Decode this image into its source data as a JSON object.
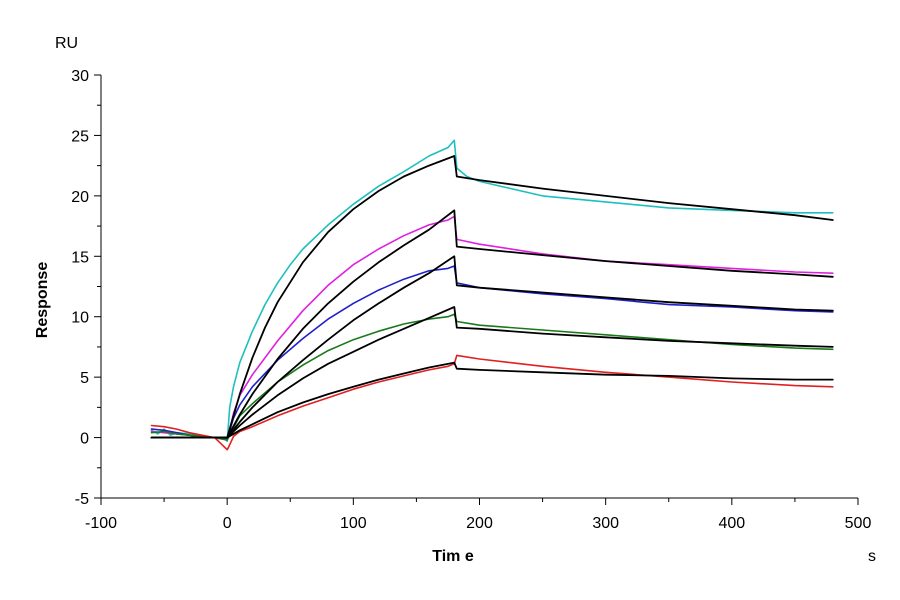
{
  "chart_data": {
    "type": "line",
    "xlabel": "Tim e",
    "ylabel": "Response",
    "x_unit": "s",
    "y_unit": "RU",
    "xlim": [
      -100,
      500
    ],
    "ylim": [
      -5,
      30
    ],
    "x_ticks": [
      -100,
      0,
      100,
      200,
      300,
      400,
      500
    ],
    "y_ticks": [
      -5,
      0,
      5,
      10,
      15,
      20,
      25,
      30
    ],
    "grid": false,
    "legend": "none",
    "series": [
      {
        "color": "#1fbfbf",
        "role": "measured",
        "x": [
          -60,
          -55,
          -50,
          -45,
          -40,
          -30,
          -20,
          -10,
          -2,
          0,
          2,
          5,
          10,
          20,
          30,
          40,
          50,
          60,
          80,
          100,
          120,
          140,
          160,
          175,
          180,
          182,
          190,
          200,
          250,
          300,
          350,
          400,
          450,
          480
        ],
        "y": [
          0.6,
          0.3,
          0.7,
          0.2,
          0.4,
          0.3,
          0.1,
          0.0,
          -0.1,
          -0.3,
          2.5,
          4.2,
          6.2,
          8.8,
          11.0,
          12.8,
          14.3,
          15.6,
          17.6,
          19.3,
          20.8,
          22.0,
          23.3,
          24.0,
          24.6,
          22.3,
          21.6,
          21.2,
          20.0,
          19.5,
          19.0,
          18.8,
          18.6,
          18.6
        ]
      },
      {
        "color": "#e020e0",
        "role": "measured",
        "x": [
          -60,
          -50,
          -40,
          -30,
          -20,
          -10,
          0,
          5,
          10,
          20,
          40,
          60,
          80,
          100,
          120,
          140,
          160,
          175,
          180,
          182,
          200,
          250,
          300,
          350,
          400,
          450,
          480
        ],
        "y": [
          0.5,
          0.4,
          0.3,
          0.2,
          0.1,
          0.0,
          -0.2,
          2.0,
          3.5,
          5.2,
          8.0,
          10.5,
          12.6,
          14.3,
          15.6,
          16.7,
          17.6,
          18.0,
          18.3,
          16.4,
          16.0,
          15.2,
          14.6,
          14.3,
          14.0,
          13.7,
          13.6
        ]
      },
      {
        "color": "#2020c8",
        "role": "measured",
        "x": [
          -60,
          -50,
          -40,
          -30,
          -20,
          -10,
          0,
          5,
          10,
          20,
          40,
          60,
          80,
          100,
          120,
          140,
          160,
          175,
          180,
          182,
          200,
          250,
          300,
          350,
          400,
          450,
          480
        ],
        "y": [
          0.7,
          0.6,
          0.4,
          0.2,
          0.1,
          0.0,
          -0.1,
          1.6,
          2.7,
          4.2,
          6.4,
          8.2,
          9.8,
          11.1,
          12.2,
          13.1,
          13.8,
          14.0,
          14.2,
          12.8,
          12.4,
          11.9,
          11.5,
          11.0,
          10.8,
          10.5,
          10.4
        ]
      },
      {
        "color": "#1a7a1a",
        "role": "measured",
        "x": [
          -60,
          -50,
          -40,
          -30,
          -20,
          -10,
          0,
          5,
          10,
          20,
          40,
          60,
          80,
          100,
          120,
          140,
          160,
          175,
          180,
          182,
          200,
          250,
          300,
          350,
          400,
          450,
          480
        ],
        "y": [
          0.4,
          0.5,
          0.3,
          0.2,
          0.1,
          0.0,
          -0.2,
          0.8,
          1.8,
          2.8,
          4.6,
          6.0,
          7.2,
          8.1,
          8.8,
          9.4,
          9.8,
          10.0,
          10.2,
          9.6,
          9.3,
          8.9,
          8.5,
          8.1,
          7.7,
          7.4,
          7.3
        ]
      },
      {
        "color": "#e02020",
        "role": "measured",
        "x": [
          -60,
          -50,
          -40,
          -30,
          -20,
          -10,
          0,
          2,
          5,
          10,
          20,
          40,
          60,
          80,
          100,
          120,
          140,
          160,
          175,
          180,
          182,
          200,
          250,
          300,
          350,
          400,
          450,
          480
        ],
        "y": [
          1.0,
          0.9,
          0.7,
          0.4,
          0.2,
          0.0,
          -1.0,
          -0.6,
          0.1,
          0.5,
          0.9,
          1.8,
          2.6,
          3.3,
          4.0,
          4.6,
          5.1,
          5.6,
          5.9,
          6.1,
          6.8,
          6.5,
          5.9,
          5.4,
          5.0,
          4.6,
          4.3,
          4.2
        ]
      },
      {
        "color": "#000000",
        "role": "fit",
        "x": [
          -60,
          -40,
          -20,
          0,
          10,
          20,
          30,
          40,
          60,
          80,
          100,
          120,
          140,
          160,
          180,
          182,
          200,
          250,
          300,
          350,
          400,
          450,
          480
        ],
        "y": [
          0,
          0,
          0,
          0.0,
          3.6,
          6.6,
          9.1,
          11.2,
          14.5,
          17.0,
          18.9,
          20.4,
          21.6,
          22.5,
          23.3,
          21.6,
          21.3,
          20.6,
          20.0,
          19.4,
          18.9,
          18.4,
          18.0
        ]
      },
      {
        "color": "#000000",
        "role": "fit",
        "x": [
          -60,
          -40,
          -20,
          0,
          10,
          20,
          40,
          60,
          80,
          100,
          120,
          140,
          160,
          180,
          182,
          200,
          250,
          300,
          350,
          400,
          450,
          480
        ],
        "y": [
          0,
          0,
          0,
          0.0,
          1.9,
          3.6,
          6.5,
          9.0,
          11.1,
          12.9,
          14.5,
          15.9,
          17.2,
          18.8,
          15.8,
          15.6,
          15.1,
          14.6,
          14.2,
          13.8,
          13.5,
          13.3
        ]
      },
      {
        "color": "#000000",
        "role": "fit",
        "x": [
          -60,
          -40,
          -20,
          0,
          10,
          20,
          40,
          60,
          80,
          100,
          120,
          140,
          160,
          180,
          182,
          200,
          250,
          300,
          350,
          400,
          450,
          480
        ],
        "y": [
          0,
          0,
          0,
          0.0,
          1.3,
          2.5,
          4.6,
          6.4,
          8.1,
          9.7,
          11.1,
          12.4,
          13.6,
          15.0,
          12.6,
          12.4,
          12.0,
          11.6,
          11.2,
          10.9,
          10.6,
          10.5
        ]
      },
      {
        "color": "#000000",
        "role": "fit",
        "x": [
          -60,
          -40,
          -20,
          0,
          10,
          20,
          40,
          60,
          80,
          100,
          120,
          140,
          160,
          180,
          182,
          200,
          250,
          300,
          350,
          400,
          450,
          480
        ],
        "y": [
          0,
          0,
          0,
          0.0,
          1.0,
          1.9,
          3.5,
          4.9,
          6.1,
          7.1,
          8.1,
          9.0,
          9.9,
          10.8,
          9.1,
          9.0,
          8.6,
          8.3,
          8.0,
          7.8,
          7.6,
          7.5
        ]
      },
      {
        "color": "#000000",
        "role": "fit",
        "x": [
          -60,
          -40,
          -20,
          0,
          10,
          20,
          40,
          60,
          80,
          100,
          120,
          140,
          160,
          180,
          182,
          200,
          250,
          300,
          350,
          400,
          450,
          480
        ],
        "y": [
          0,
          0,
          0,
          0.0,
          0.6,
          1.1,
          2.1,
          2.9,
          3.6,
          4.2,
          4.8,
          5.3,
          5.8,
          6.2,
          5.7,
          5.6,
          5.4,
          5.2,
          5.1,
          4.9,
          4.8,
          4.8
        ]
      }
    ]
  }
}
